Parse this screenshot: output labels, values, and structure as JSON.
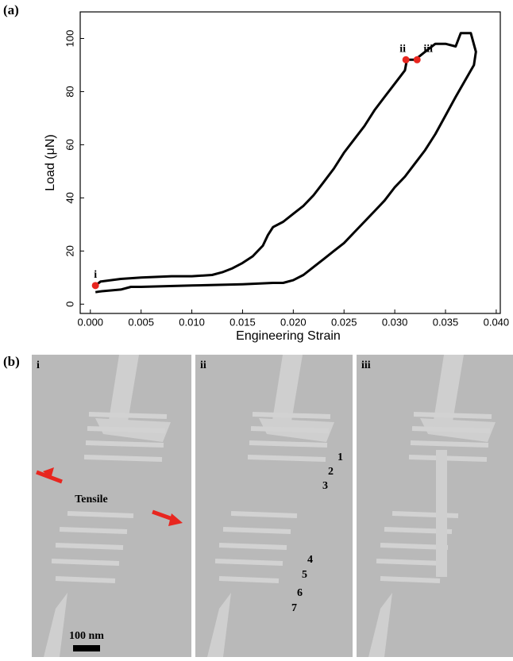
{
  "chart_data": {
    "type": "line",
    "panel_label": "(a)",
    "xlabel": "Engineering Strain",
    "ylabel": "Load (μN)",
    "x": [
      0.0005,
      0.001,
      0.003,
      0.005,
      0.008,
      0.01,
      0.012,
      0.013,
      0.014,
      0.015,
      0.016,
      0.017,
      0.0175,
      0.018,
      0.019,
      0.02,
      0.021,
      0.022,
      0.023,
      0.024,
      0.025,
      0.026,
      0.027,
      0.028,
      0.029,
      0.03,
      0.031,
      0.0312,
      0.032,
      0.033,
      0.034,
      0.035,
      0.036,
      0.0365,
      0.0375,
      0.038,
      0.0378,
      0.0375,
      0.036,
      0.035,
      0.034,
      0.033,
      0.032,
      0.031,
      0.03,
      0.029,
      0.028,
      0.027,
      0.026,
      0.025,
      0.024,
      0.023,
      0.022,
      0.021,
      0.02,
      0.019,
      0.018,
      0.015,
      0.01,
      0.005,
      0.004,
      0.003,
      0.001,
      0.0005
    ],
    "series": [
      {
        "color": "#000000",
        "values": [
          7,
          8.5,
          9.5,
          10,
          10.5,
          10.5,
          11,
          12,
          13.5,
          15.5,
          18,
          22,
          26,
          29,
          31,
          34,
          37,
          41,
          46,
          51,
          57,
          62,
          67,
          73,
          78,
          83,
          88,
          92,
          92,
          95,
          98,
          98,
          97,
          102,
          102,
          95,
          90,
          88,
          78,
          71,
          64,
          58,
          53,
          48,
          44,
          39,
          35,
          31,
          27,
          23,
          20,
          17,
          14,
          11,
          9,
          8,
          8,
          7.5,
          7,
          6.5,
          6.5,
          5.5,
          4.8,
          4.5
        ]
      }
    ],
    "points": [
      {
        "label": "i",
        "x": 0.0005,
        "y": 7
      },
      {
        "label": "ii",
        "x": 0.0311,
        "y": 92
      },
      {
        "label": "iii",
        "x": 0.0322,
        "y": 92
      }
    ],
    "point_color": "#e8261f",
    "xlim": [
      -0.001,
      0.0404
    ],
    "ylim": [
      -3.5,
      110
    ],
    "xticks": [
      {
        "value": 0,
        "label": "0.000"
      },
      {
        "value": 0.005,
        "label": "0.005"
      },
      {
        "value": 0.01,
        "label": "0.010"
      },
      {
        "value": 0.015,
        "label": "0.015"
      },
      {
        "value": 0.02,
        "label": "0.020"
      },
      {
        "value": 0.025,
        "label": "0.025"
      },
      {
        "value": 0.03,
        "label": "0.030"
      },
      {
        "value": 0.035,
        "label": "0.035"
      },
      {
        "value": 0.04,
        "label": "0.040"
      }
    ],
    "yticks": [
      0,
      20,
      40,
      60,
      80,
      100
    ]
  },
  "panel_b": {
    "panel_label": "(b)",
    "images": [
      {
        "label": "i",
        "annotation": "Tensile",
        "scale_bar": "100 nm"
      },
      {
        "label": "ii",
        "numbers": [
          "1",
          "2",
          "3",
          "4",
          "5",
          "6",
          "7"
        ]
      },
      {
        "label": "iii"
      }
    ]
  }
}
